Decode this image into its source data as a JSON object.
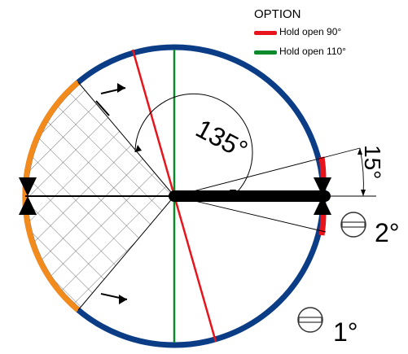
{
  "legend": {
    "title": "OPTION",
    "items": [
      {
        "label": "Hold open 90°",
        "color": "#e8141b"
      },
      {
        "label": "Hold open 110°",
        "color": "#0a8a2a"
      }
    ]
  },
  "angles": {
    "swing": "135°",
    "tilt": "15°"
  },
  "positions": {
    "step_2": "2°",
    "step_1": "1°"
  },
  "colors": {
    "ring": "#0b3c86",
    "ring_arc_left": "#f28a1c",
    "ring_marker_right": "#e8141b",
    "door_leaf": "#000000",
    "hatch": "#555555"
  },
  "icons": {
    "position_symbol": "circled-minus-icon"
  }
}
